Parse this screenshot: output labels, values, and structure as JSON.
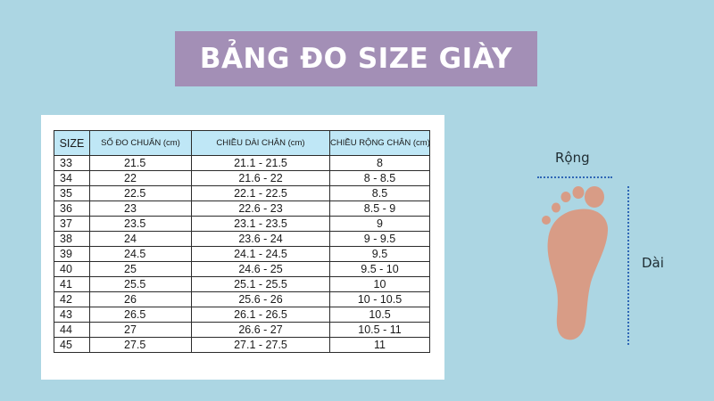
{
  "title": "BẢNG ĐO SIZE GIÀY",
  "table": {
    "headers": {
      "size": "SIZE",
      "standard": "SỐ ĐO CHUẨN (cm)",
      "length": "CHIỀU DÀI CHÂN (cm)",
      "width": "CHIỀU RỘNG CHÂN (cm)"
    },
    "rows": [
      {
        "size": "33",
        "standard": "21.5",
        "length": "21.1 - 21.5",
        "width": "8"
      },
      {
        "size": "34",
        "standard": "22",
        "length": "21.6 - 22",
        "width": "8 - 8.5"
      },
      {
        "size": "35",
        "standard": "22.5",
        "length": "22.1 - 22.5",
        "width": "8.5"
      },
      {
        "size": "36",
        "standard": "23",
        "length": "22.6 - 23",
        "width": "8.5 - 9"
      },
      {
        "size": "37",
        "standard": "23.5",
        "length": "23.1 - 23.5",
        "width": "9"
      },
      {
        "size": "38",
        "standard": "24",
        "length": "23.6 - 24",
        "width": "9 - 9.5"
      },
      {
        "size": "39",
        "standard": "24.5",
        "length": "24.1 - 24.5",
        "width": "9.5"
      },
      {
        "size": "40",
        "standard": "25",
        "length": "24.6 - 25",
        "width": "9.5 - 10"
      },
      {
        "size": "41",
        "standard": "25.5",
        "length": "25.1 - 25.5",
        "width": "10"
      },
      {
        "size": "42",
        "standard": "26",
        "length": "25.6 - 26",
        "width": "10 - 10.5"
      },
      {
        "size": "43",
        "standard": "26.5",
        "length": "26.1 - 26.5",
        "width": "10.5"
      },
      {
        "size": "44",
        "standard": "27",
        "length": "26.6 - 27",
        "width": "10.5 - 11"
      },
      {
        "size": "45",
        "standard": "27.5",
        "length": "27.1 - 27.5",
        "width": "11"
      }
    ]
  },
  "diagram": {
    "width_label": "Rộng",
    "length_label": "Dài"
  },
  "colors": {
    "background": "#acd6e3",
    "title_banner": "#a38fb6",
    "header_cell": "#bfe7f6",
    "foot": "#d89c86",
    "measure_line": "#2f67b5"
  },
  "icons": {
    "foot": "foot-icon"
  }
}
